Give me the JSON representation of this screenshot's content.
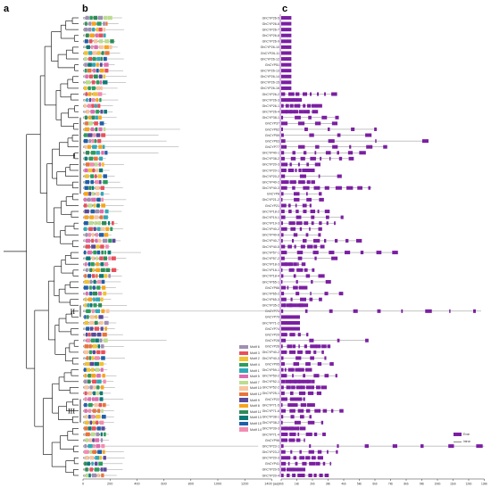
{
  "panels": {
    "a": "a",
    "b": "b",
    "c": "c"
  },
  "genes": [
    "GhCYP26-5",
    "GhCYP26-6",
    "GhCYP26-7",
    "GhCYP26-8",
    "GhCYP26-9",
    "GhCYP26-10",
    "GhCYP26-11",
    "GhCYP26-12",
    "GhCYP51",
    "GhCYP26-13",
    "GhCYP26-14",
    "GhCYP26-15",
    "GhCYP26-16",
    "GhCYP26-2",
    "GhCYP26-3",
    "GhCYP26-1",
    "GhCYP26-4",
    "GhCYP38-1",
    "GhCYP37",
    "GhCYP62",
    "GhCYP59",
    "GhCYP63",
    "GhCYP77",
    "GhCYP40-1",
    "GhCYP38-2",
    "GhCYP20-3",
    "GhCYP20-1",
    "GhCYP20-2",
    "GhCYP40-2",
    "GhCYP40-3",
    "GhCYP8",
    "GhCYP21-2",
    "GhCYP21",
    "GhCYP18-2",
    "GhCYP19-1",
    "GhCYP19-3",
    "GhCYP40-2",
    "GhCYP40-6",
    "GhCYP40-7",
    "GhCYP40-5",
    "GhCYP57-1",
    "GhCYP57-2",
    "GhCYP18-3",
    "GhCYP18-1",
    "GhCYP18-4",
    "GhCYP65-1",
    "GhCYP66",
    "GhCYP65-2",
    "GhCYP65-3",
    "GhCYP35-2",
    "GhCYP71",
    "GhCYP79",
    "GhCYP71-2",
    "GhCYP74",
    "GhCYP29",
    "GhCYP28",
    "GhCYP26",
    "GhCYP40-2",
    "GhCYP40-3",
    "GhCYP95",
    "GhCYP59-1",
    "GhCYP59-2",
    "GhCYP52-1",
    "GhCYP52-2",
    "GhCYP25-1",
    "GhCYP22",
    "GhCYP71-5",
    "GhCYP71-6",
    "GhCYP38-1",
    "GhCYP38-2",
    "GhCYP39-3",
    "GhCYP71-4",
    "GhCYP96",
    "GhCYP23-1",
    "GhCYP23-2",
    "GhCYP20-3",
    "GhCYP41",
    "GhCYP20-5",
    "GhCYP20-4"
  ],
  "protein_axis_ticks": [
    "0",
    "200",
    "400",
    "600",
    "800",
    "1000",
    "1200",
    "1400 (aa)"
  ],
  "gene_axis_ticks": [
    "0kb",
    "1kb",
    "2kb",
    "3kb",
    "4kb",
    "5kb",
    "6kb",
    "7kb",
    "8kb",
    "9kb",
    "10kb",
    "11kb",
    "12kb",
    "13kb"
  ],
  "clade_labels": [
    "I",
    "II",
    "III"
  ],
  "motifs": [
    {
      "name": "Motif 6",
      "color": "#9e8fb2"
    },
    {
      "name": "Motif 3",
      "color": "#e8505b"
    },
    {
      "name": "Motif 2",
      "color": "#f1c232"
    },
    {
      "name": "Motif 4",
      "color": "#2a9d5c"
    },
    {
      "name": "Motif 1",
      "color": "#31a9b8"
    },
    {
      "name": "Motif 5",
      "color": "#e06cb0"
    },
    {
      "name": "Motif 7",
      "color": "#bcdc8f"
    },
    {
      "name": "Motif 10",
      "color": "#f7c59f"
    },
    {
      "name": "Motif 12",
      "color": "#e8743b"
    },
    {
      "name": "Motif 9",
      "color": "#5b4a9b"
    },
    {
      "name": "Motif 8",
      "color": "#f7a41d"
    },
    {
      "name": "Motif 11",
      "color": "#2e8b57"
    },
    {
      "name": "Motif 13",
      "color": "#0b7a75"
    },
    {
      "name": "Motif 15",
      "color": "#1f5fa8"
    },
    {
      "name": "Motif 14",
      "color": "#f28cb1"
    }
  ],
  "gene_legend": {
    "exon": "Exon",
    "intron": "Intron",
    "exon_color": "#7b1fa2"
  }
}
